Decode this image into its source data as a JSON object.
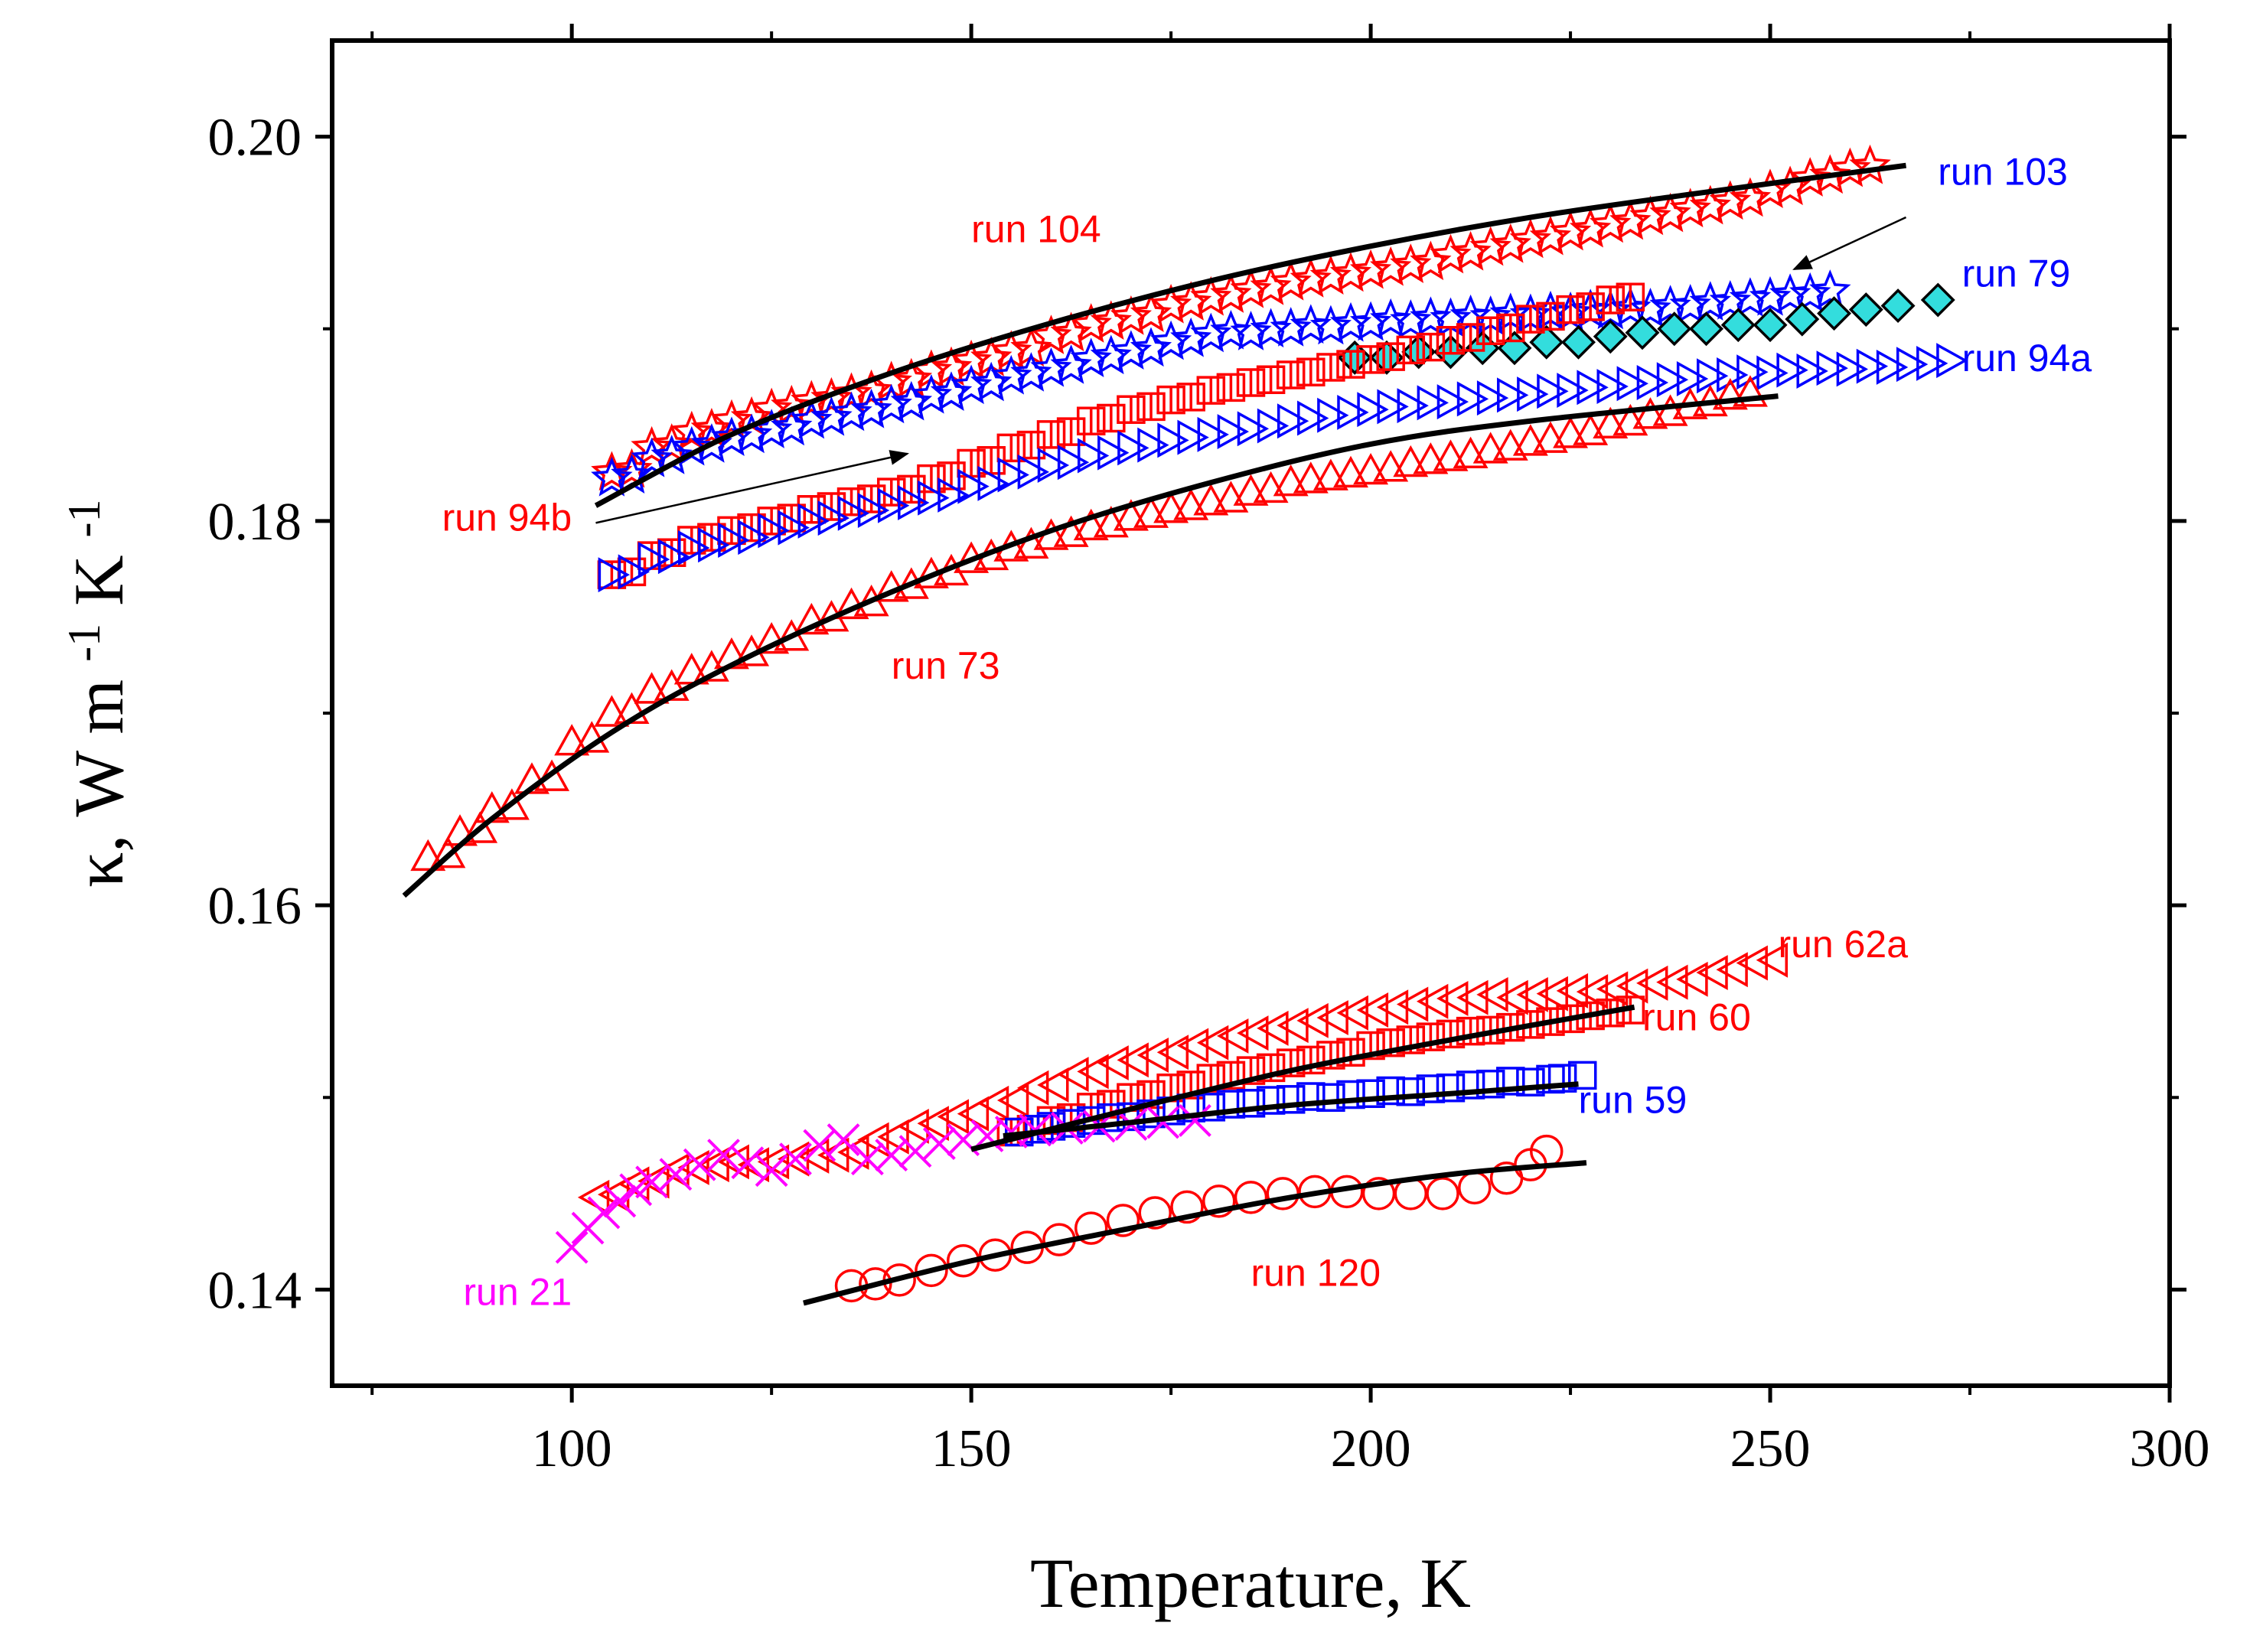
{
  "chart_data": {
    "type": "scatter",
    "title": "",
    "xlabel": "Temperature, K",
    "ylabel": {
      "base": "κ, W m",
      "sup1": "-1",
      "mid": "K",
      "sup2": "-1"
    },
    "xlim": [
      70,
      300
    ],
    "ylim": [
      0.135,
      0.205
    ],
    "x_ticks": [
      {
        "value": 100,
        "label": "100"
      },
      {
        "value": 150,
        "label": "150"
      },
      {
        "value": 200,
        "label": "200"
      },
      {
        "value": 250,
        "label": "250"
      },
      {
        "value": 300,
        "label": "300"
      }
    ],
    "y_ticks": [
      {
        "value": 0.14,
        "label": "0.14"
      },
      {
        "value": 0.16,
        "label": "0.16"
      },
      {
        "value": 0.18,
        "label": "0.18"
      },
      {
        "value": 0.2,
        "label": "0.20"
      }
    ],
    "grid": false,
    "series": [
      {
        "name": "run 104",
        "marker": "star",
        "color": "#ff0000",
        "fill": "none",
        "x": [
          105,
          110,
          115,
          120,
          125,
          130,
          135,
          140,
          145,
          150,
          155,
          160,
          165,
          170,
          175,
          180,
          185,
          190,
          195,
          200,
          205,
          210,
          215,
          220,
          225,
          230,
          235,
          240,
          245,
          250,
          255,
          260
        ],
        "y": [
          0.1825,
          0.1838,
          0.1846,
          0.1852,
          0.1858,
          0.1862,
          0.1866,
          0.1872,
          0.1878,
          0.1883,
          0.1888,
          0.1896,
          0.1902,
          0.1906,
          0.1912,
          0.1916,
          0.192,
          0.1924,
          0.1927,
          0.193,
          0.1933,
          0.1938,
          0.1942,
          0.1946,
          0.195,
          0.1954,
          0.1958,
          0.1962,
          0.1966,
          0.1972,
          0.1978,
          0.1983
        ]
      },
      {
        "name": "run 103",
        "marker": "star",
        "color": "#0000ff",
        "fill": "none",
        "x": [
          105,
          110,
          115,
          120,
          125,
          130,
          135,
          140,
          145,
          150,
          155,
          160,
          165,
          170,
          175,
          180,
          185,
          190,
          195,
          200,
          205,
          210,
          215,
          220,
          225,
          230,
          235,
          240,
          245,
          250,
          255
        ],
        "y": [
          0.1822,
          0.1832,
          0.1838,
          0.1843,
          0.1847,
          0.1852,
          0.1856,
          0.186,
          0.1865,
          0.187,
          0.1875,
          0.1879,
          0.1884,
          0.1888,
          0.1893,
          0.1897,
          0.1898,
          0.19,
          0.1901,
          0.1903,
          0.1904,
          0.1905,
          0.1906,
          0.1907,
          0.1908,
          0.1909,
          0.191,
          0.1912,
          0.1914,
          0.1916,
          0.1918
        ]
      },
      {
        "name": "run 79",
        "marker": "diamond",
        "color": "#000000",
        "fill": "#33dddd",
        "x": [
          198,
          202,
          206,
          210,
          214,
          218,
          222,
          226,
          230,
          234,
          238,
          242,
          246,
          250,
          254,
          258,
          262,
          266,
          271
        ],
        "y": [
          0.1885,
          0.1885,
          0.1888,
          0.1888,
          0.189,
          0.189,
          0.1893,
          0.1893,
          0.1896,
          0.1898,
          0.19,
          0.19,
          0.1902,
          0.1902,
          0.1905,
          0.1908,
          0.191,
          0.1912,
          0.1915
        ]
      },
      {
        "name": "run 94b",
        "marker": "square-half",
        "color": "#ff0000",
        "fill": "none",
        "x": [
          105,
          110,
          115,
          120,
          125,
          130,
          135,
          140,
          145,
          150,
          155,
          160,
          165,
          170,
          175,
          180,
          185,
          190,
          195,
          200,
          205,
          210,
          215,
          220,
          225,
          230
        ],
        "y": [
          0.1772,
          0.1782,
          0.179,
          0.1795,
          0.18,
          0.1806,
          0.181,
          0.1815,
          0.1822,
          0.183,
          0.1838,
          0.1845,
          0.1852,
          0.1858,
          0.1863,
          0.1868,
          0.1872,
          0.1876,
          0.188,
          0.1884,
          0.1889,
          0.1894,
          0.1899,
          0.1905,
          0.191,
          0.1915
        ]
      },
      {
        "name": "run 94a",
        "marker": "triangle-right",
        "color": "#0000ff",
        "fill": "none",
        "x": [
          105,
          110,
          115,
          120,
          125,
          130,
          135,
          140,
          145,
          150,
          155,
          160,
          165,
          170,
          175,
          180,
          185,
          190,
          195,
          200,
          205,
          210,
          215,
          220,
          225,
          230,
          235,
          240,
          245,
          250,
          255,
          260,
          265,
          270
        ],
        "y": [
          0.1772,
          0.178,
          0.1786,
          0.179,
          0.1795,
          0.18,
          0.1804,
          0.1808,
          0.1812,
          0.1818,
          0.1824,
          0.1829,
          0.1834,
          0.1838,
          0.1842,
          0.1845,
          0.1848,
          0.1852,
          0.1855,
          0.1858,
          0.186,
          0.1862,
          0.1864,
          0.1866,
          0.1868,
          0.187,
          0.1872,
          0.1874,
          0.1876,
          0.1877,
          0.1878,
          0.1879,
          0.188,
          0.1882
        ]
      },
      {
        "name": "run 73",
        "marker": "triangle-up",
        "color": "#ff0000",
        "fill": "none",
        "x": [
          82,
          86,
          90,
          95,
          100,
          105,
          110,
          115,
          120,
          125,
          130,
          135,
          140,
          145,
          150,
          155,
          160,
          165,
          170,
          175,
          180,
          185,
          190,
          195,
          200,
          205,
          210,
          215,
          220,
          225,
          230,
          235,
          240,
          245
        ],
        "y": [
          0.1625,
          0.1638,
          0.165,
          0.1665,
          0.1685,
          0.17,
          0.1712,
          0.1722,
          0.173,
          0.1738,
          0.1748,
          0.1756,
          0.1765,
          0.1772,
          0.178,
          0.1786,
          0.1792,
          0.1797,
          0.1802,
          0.1806,
          0.181,
          0.1815,
          0.182,
          0.1823,
          0.1826,
          0.183,
          0.1833,
          0.1837,
          0.1841,
          0.1845,
          0.185,
          0.1855,
          0.186,
          0.1865
        ]
      },
      {
        "name": "run 62a",
        "marker": "triangle-left",
        "color": "#ff0000",
        "fill": "none",
        "x": [
          103,
          108,
          113,
          118,
          123,
          128,
          133,
          138,
          143,
          148,
          153,
          158,
          163,
          168,
          173,
          178,
          183,
          188,
          193,
          198,
          203,
          208,
          213,
          218,
          223,
          228,
          233,
          238,
          243,
          248
        ],
        "y": [
          0.1448,
          0.1455,
          0.1462,
          0.1465,
          0.1465,
          0.1468,
          0.147,
          0.1478,
          0.1485,
          0.149,
          0.1497,
          0.1505,
          0.1512,
          0.1518,
          0.1522,
          0.1527,
          0.1532,
          0.1536,
          0.154,
          0.1544,
          0.1547,
          0.155,
          0.1552,
          0.1552,
          0.1554,
          0.1555,
          0.1558,
          0.156,
          0.1565,
          0.157
        ]
      },
      {
        "name": "run 60",
        "marker": "square-half",
        "color": "#ff0000",
        "fill": "none",
        "x": [
          155,
          160,
          165,
          170,
          175,
          180,
          185,
          190,
          195,
          200,
          205,
          210,
          215,
          220,
          225,
          230
        ],
        "y": [
          0.1482,
          0.1488,
          0.1495,
          0.15,
          0.1505,
          0.151,
          0.1514,
          0.1518,
          0.1522,
          0.1527,
          0.153,
          0.1533,
          0.1535,
          0.1538,
          0.1541,
          0.1544
        ]
      },
      {
        "name": "run 59",
        "marker": "square",
        "color": "#0000ff",
        "fill": "none",
        "x": [
          156,
          160,
          165,
          170,
          175,
          180,
          185,
          190,
          195,
          200,
          205,
          210,
          215,
          220,
          224
        ],
        "y": [
          0.1482,
          0.1485,
          0.1488,
          0.149,
          0.1493,
          0.1495,
          0.1497,
          0.1499,
          0.15,
          0.1502,
          0.1503,
          0.1505,
          0.1507,
          0.1508,
          0.151
        ]
      },
      {
        "name": "run 21",
        "marker": "x",
        "color": "#ff00ff",
        "fill": "none",
        "x": [
          100,
          102,
          104,
          106,
          108,
          110,
          113,
          116,
          119,
          122,
          125,
          128,
          131,
          134,
          137,
          140,
          143,
          146,
          149,
          152,
          155,
          158,
          162,
          166,
          170,
          174,
          178
        ],
        "y": [
          0.1422,
          0.1432,
          0.144,
          0.1446,
          0.1452,
          0.1456,
          0.146,
          0.1465,
          0.147,
          0.1466,
          0.1462,
          0.1468,
          0.1475,
          0.1478,
          0.1468,
          0.147,
          0.1472,
          0.1476,
          0.1478,
          0.148,
          0.1482,
          0.1483,
          0.1484,
          0.1485,
          0.1486,
          0.1487,
          0.1488
        ]
      },
      {
        "name": "run 120",
        "marker": "circle",
        "color": "#ff0000",
        "fill": "none",
        "x": [
          135,
          138,
          141,
          145,
          149,
          153,
          157,
          161,
          165,
          169,
          173,
          177,
          181,
          185,
          189,
          193,
          197,
          201,
          205,
          209,
          213,
          217,
          220,
          222
        ],
        "y": [
          0.1402,
          0.1403,
          0.1405,
          0.141,
          0.1415,
          0.1418,
          0.1422,
          0.1426,
          0.1432,
          0.1436,
          0.144,
          0.1443,
          0.1446,
          0.1448,
          0.145,
          0.1451,
          0.1451,
          0.145,
          0.145,
          0.145,
          0.1453,
          0.1458,
          0.1465,
          0.1472
        ]
      }
    ],
    "fits": [
      {
        "name": "fit run 104",
        "x": [
          103,
          120,
          140,
          160,
          180,
          200,
          220,
          240,
          267
        ],
        "y": [
          0.1808,
          0.1845,
          0.1877,
          0.1903,
          0.1925,
          0.1943,
          0.1958,
          0.197,
          0.1985
        ]
      },
      {
        "name": "fit run 73",
        "x": [
          79,
          90,
          105,
          120,
          140,
          160,
          180,
          200,
          220,
          251
        ],
        "y": [
          0.1605,
          0.1645,
          0.169,
          0.1725,
          0.1763,
          0.1795,
          0.182,
          0.184,
          0.1852,
          0.1865
        ]
      },
      {
        "name": "fit run 60",
        "x": [
          150,
          170,
          190,
          210,
          233
        ],
        "y": [
          0.1473,
          0.1494,
          0.1514,
          0.153,
          0.1547
        ]
      },
      {
        "name": "fit run 59",
        "x": [
          154,
          170,
          190,
          210,
          226
        ],
        "y": [
          0.148,
          0.1487,
          0.1496,
          0.1502,
          0.1507
        ]
      },
      {
        "name": "fit run 120",
        "x": [
          129,
          150,
          170,
          190,
          210,
          227
        ],
        "y": [
          0.1393,
          0.1415,
          0.1432,
          0.1448,
          0.146,
          0.1466
        ]
      }
    ],
    "annotations": [
      {
        "text": "run 104",
        "x": 150,
        "y": 0.1945,
        "color": "#ff0000",
        "anchor": "start"
      },
      {
        "text": "run 103",
        "x": 271,
        "y": 0.1975,
        "color": "#0000ff",
        "anchor": "start"
      },
      {
        "text": "run 79",
        "x": 274,
        "y": 0.1922,
        "color": "#0000ff",
        "anchor": "start"
      },
      {
        "text": "run 94a",
        "x": 274,
        "y": 0.1878,
        "color": "#0000ff",
        "anchor": "start"
      },
      {
        "text": "run 94b",
        "x": 100,
        "y": 0.1795,
        "color": "#ff0000",
        "anchor": "end"
      },
      {
        "text": "run 73",
        "x": 140,
        "y": 0.1718,
        "color": "#ff0000",
        "anchor": "start"
      },
      {
        "text": "run 62a",
        "x": 251,
        "y": 0.1573,
        "color": "#ff0000",
        "anchor": "start"
      },
      {
        "text": "run 60",
        "x": 234,
        "y": 0.1535,
        "color": "#ff0000",
        "anchor": "start"
      },
      {
        "text": "run 59",
        "x": 226,
        "y": 0.1492,
        "color": "#0000ff",
        "anchor": "start"
      },
      {
        "text": "run 21",
        "x": 100,
        "y": 0.1392,
        "color": "#ff00ff",
        "anchor": "end"
      },
      {
        "text": "run 120",
        "x": 185,
        "y": 0.1402,
        "color": "#ff0000",
        "anchor": "start"
      }
    ],
    "arrows": [
      {
        "from": [
          103,
          0.1799
        ],
        "to": [
          142,
          0.1835
        ],
        "label": "run 94b"
      },
      {
        "from": [
          267,
          0.1958
        ],
        "to": [
          253,
          0.1931
        ],
        "label": "run 103"
      }
    ]
  }
}
